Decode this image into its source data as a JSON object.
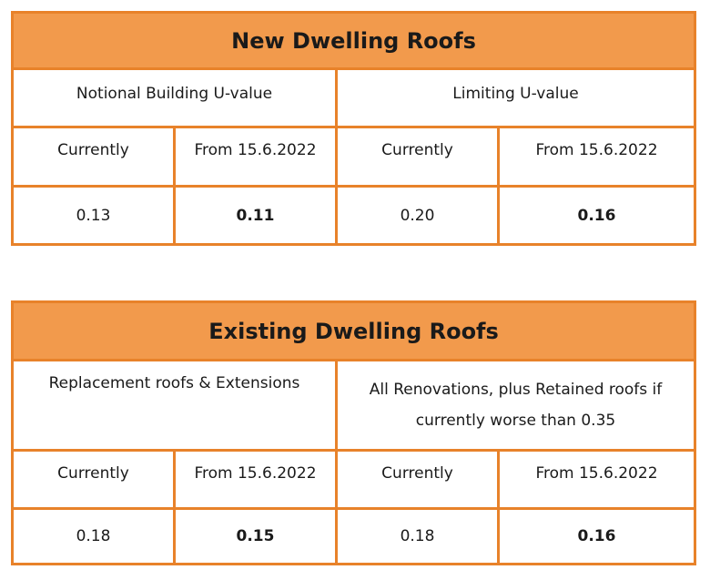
{
  "new_dwelling": {
    "title": "New Dwelling Roofs",
    "groups": [
      "Notional Building U-value",
      "Limiting U-value"
    ],
    "subheaders": [
      "Currently",
      "From 15.6.2022",
      "Currently",
      "From 15.6.2022"
    ],
    "values": [
      "0.13",
      "0.11",
      "0.20",
      "0.16"
    ]
  },
  "existing_dwelling": {
    "title": "Existing Dwelling Roofs",
    "groups": [
      "Replacement roofs & Extensions",
      "All Renovations, plus Retained roofs if currently worse than 0.35"
    ],
    "subheaders": [
      "Currently",
      "From 15.6.2022",
      "Currently",
      "From 15.6.2022"
    ],
    "values": [
      "0.18",
      "0.15",
      "0.18",
      "0.16"
    ]
  },
  "colors": {
    "border": "#e8822a",
    "header_fill": "#f29a4c"
  }
}
